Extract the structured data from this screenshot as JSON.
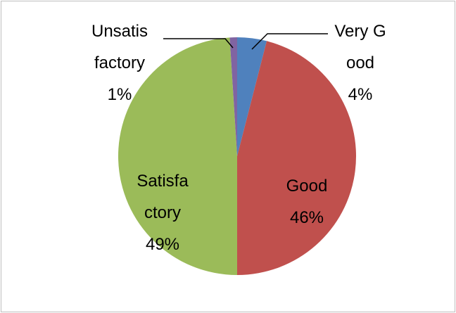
{
  "chart_data": {
    "type": "pie",
    "categories": [
      "Very Good",
      "Good",
      "Satisfactory",
      "Unsatisfactory"
    ],
    "values": [
      4,
      46,
      49,
      1
    ],
    "value_labels": [
      "4%",
      "46%",
      "49%",
      "1%"
    ],
    "colors": [
      "#4f81bd",
      "#c0504d",
      "#9bbb59",
      "#8064a2"
    ]
  }
}
